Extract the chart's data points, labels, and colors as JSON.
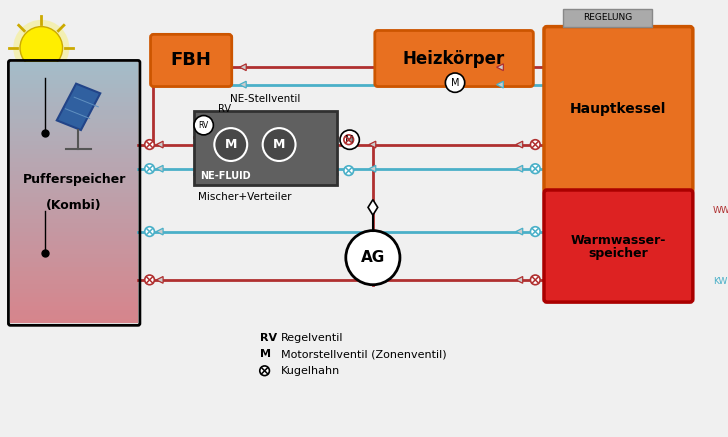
{
  "bg_color": "#f0f0f0",
  "colors": {
    "hot": "#b03030",
    "cold": "#4ab0c8",
    "orange": "#e87020",
    "orange_dark": "#cc5500",
    "red_box": "#dd2222",
    "gray_box": "#606060",
    "sun_yellow": "#ffee00",
    "regelung_gray": "#aaaaaa"
  },
  "legend_items": [
    {
      "key": "RV",
      "text": "Regelventil"
    },
    {
      "key": "M",
      "text": "Motorstellventil (Zonenventil)"
    },
    {
      "key": "X",
      "text": "Kugelhahn"
    }
  ]
}
